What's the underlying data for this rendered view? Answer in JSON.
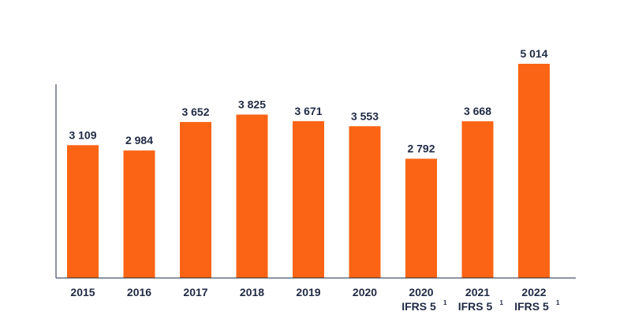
{
  "colors": {
    "bar": "#FA6414",
    "text": "#1F2A44",
    "axis": "#1F2A44"
  },
  "chart_data": {
    "type": "bar",
    "categories": [
      "2015",
      "2016",
      "2017",
      "2018",
      "2019",
      "2020",
      "2020",
      "2021",
      "2022"
    ],
    "category_notes": [
      "",
      "",
      "",
      "",
      "",
      "",
      "IFRS 5",
      "IFRS 5",
      "IFRS 5"
    ],
    "category_note_marks": [
      "",
      "",
      "",
      "",
      "",
      "",
      "1",
      "1",
      "1"
    ],
    "values": [
      3109,
      2984,
      3652,
      3825,
      3671,
      3553,
      2792,
      3668,
      5014
    ],
    "value_labels": [
      "3 109",
      "2 984",
      "3 652",
      "3 825",
      "3 671",
      "3 553",
      "2 792",
      "3 668",
      "5 014"
    ],
    "title": "",
    "xlabel": "",
    "ylabel": "",
    "ylim": [
      0,
      5500
    ],
    "grid": false,
    "legend": "none"
  }
}
